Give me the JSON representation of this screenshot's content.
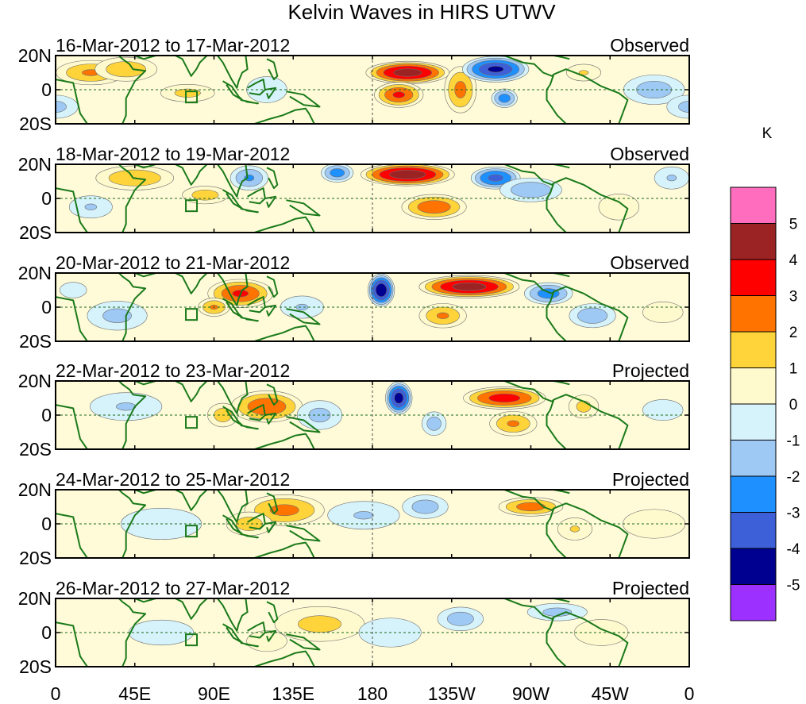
{
  "chart_data": {
    "type": "heatmap",
    "title": "Kelvin Waves in HIRS UTWV",
    "units_label": "K",
    "x_ticks": [
      "0",
      "45E",
      "90E",
      "135E",
      "180",
      "135W",
      "90W",
      "45W",
      "0"
    ],
    "y_ticks": [
      "20N",
      "0",
      "20S"
    ],
    "colorbar": {
      "colors": [
        "#9b30ff",
        "#000090",
        "#3d5fd8",
        "#1e90ff",
        "#9ec9f5",
        "#d6f3fb",
        "#fffacd",
        "#ffd43a",
        "#ff7400",
        "#ff0000",
        "#9b2323",
        "#ff6ebe"
      ],
      "labels": [
        "-5",
        "-4",
        "-3",
        "-2",
        "-1",
        "0",
        "1",
        "2",
        "3",
        "4",
        "5"
      ]
    },
    "panels": [
      {
        "date_range": "16-Mar-2012 to 17-Mar-2012",
        "kind": "Observed",
        "blobs": [
          [
            20,
            10,
            22,
            8,
            2.5
          ],
          [
            40,
            12,
            20,
            8,
            2.2
          ],
          [
            75,
            -2,
            18,
            6,
            1.8
          ],
          [
            200,
            10,
            25,
            7,
            5.0
          ],
          [
            195,
            -3,
            15,
            8,
            3.5
          ],
          [
            230,
            0,
            10,
            15,
            2.8
          ],
          [
            250,
            12,
            20,
            8,
            -4.5
          ],
          [
            255,
            -5,
            8,
            6,
            -3.0
          ],
          [
            300,
            10,
            12,
            6,
            1.5
          ],
          [
            340,
            0,
            20,
            10,
            -2.0
          ],
          [
            120,
            0,
            15,
            10,
            -1.2
          ],
          [
            0,
            -10,
            15,
            8,
            -1.8
          ]
        ]
      },
      {
        "date_range": "18-Mar-2012 to 19-Mar-2012",
        "kind": "Observed",
        "blobs": [
          [
            45,
            12,
            25,
            8,
            2.3
          ],
          [
            85,
            2,
            15,
            6,
            2.0
          ],
          [
            110,
            12,
            12,
            8,
            -2.5
          ],
          [
            160,
            15,
            10,
            6,
            -3.0
          ],
          [
            200,
            14,
            28,
            7,
            5.2
          ],
          [
            215,
            -5,
            20,
            8,
            3.2
          ],
          [
            250,
            12,
            15,
            7,
            -3.8
          ],
          [
            270,
            5,
            20,
            8,
            -2.2
          ],
          [
            20,
            -5,
            15,
            8,
            -1.5
          ],
          [
            320,
            -5,
            15,
            10,
            1.2
          ],
          [
            350,
            12,
            12,
            8,
            -1.5
          ]
        ]
      },
      {
        "date_range": "20-Mar-2012 to 21-Mar-2012",
        "kind": "Observed",
        "blobs": [
          [
            105,
            8,
            20,
            9,
            3.5
          ],
          [
            90,
            0,
            10,
            6,
            2.5
          ],
          [
            185,
            10,
            8,
            10,
            -5.3
          ],
          [
            235,
            12,
            30,
            7,
            5.0
          ],
          [
            220,
            -5,
            15,
            8,
            2.5
          ],
          [
            280,
            8,
            15,
            7,
            -3.0
          ],
          [
            305,
            -5,
            15,
            8,
            -2.2
          ],
          [
            35,
            -5,
            20,
            10,
            -1.8
          ],
          [
            140,
            0,
            15,
            8,
            -1.5
          ],
          [
            345,
            -3,
            15,
            8,
            1.2
          ],
          [
            10,
            10,
            10,
            6,
            -1.2
          ]
        ]
      },
      {
        "date_range": "22-Mar-2012 to 23-Mar-2012",
        "kind": "Projected",
        "blobs": [
          [
            120,
            5,
            22,
            10,
            3.3
          ],
          [
            95,
            0,
            10,
            8,
            2.0
          ],
          [
            195,
            10,
            8,
            10,
            -5.0
          ],
          [
            255,
            10,
            25,
            7,
            4.0
          ],
          [
            260,
            -5,
            15,
            8,
            2.5
          ],
          [
            150,
            0,
            15,
            10,
            -1.8
          ],
          [
            215,
            -5,
            8,
            8,
            -2.0
          ],
          [
            300,
            5,
            10,
            8,
            1.8
          ],
          [
            40,
            5,
            25,
            10,
            -1.5
          ],
          [
            345,
            3,
            15,
            8,
            -1.2
          ]
        ]
      },
      {
        "date_range": "24-Mar-2012 to 25-Mar-2012",
        "kind": "Projected",
        "blobs": [
          [
            130,
            8,
            25,
            10,
            2.8
          ],
          [
            110,
            0,
            15,
            8,
            2.0
          ],
          [
            175,
            5,
            25,
            10,
            -1.5
          ],
          [
            210,
            10,
            15,
            8,
            -2.0
          ],
          [
            270,
            10,
            20,
            6,
            3.0
          ],
          [
            295,
            -3,
            12,
            8,
            1.5
          ],
          [
            60,
            0,
            30,
            12,
            -1.2
          ],
          [
            340,
            0,
            25,
            12,
            1.0
          ]
        ]
      },
      {
        "date_range": "26-Mar-2012 to 27-Mar-2012",
        "kind": "Projected",
        "blobs": [
          [
            150,
            5,
            30,
            12,
            1.8
          ],
          [
            120,
            -5,
            15,
            8,
            1.2
          ],
          [
            230,
            8,
            15,
            8,
            -2.0
          ],
          [
            190,
            0,
            25,
            12,
            -1.0
          ],
          [
            285,
            12,
            20,
            6,
            -1.8
          ],
          [
            310,
            0,
            20,
            10,
            1.2
          ],
          [
            60,
            0,
            30,
            12,
            -0.8
          ]
        ]
      }
    ]
  }
}
